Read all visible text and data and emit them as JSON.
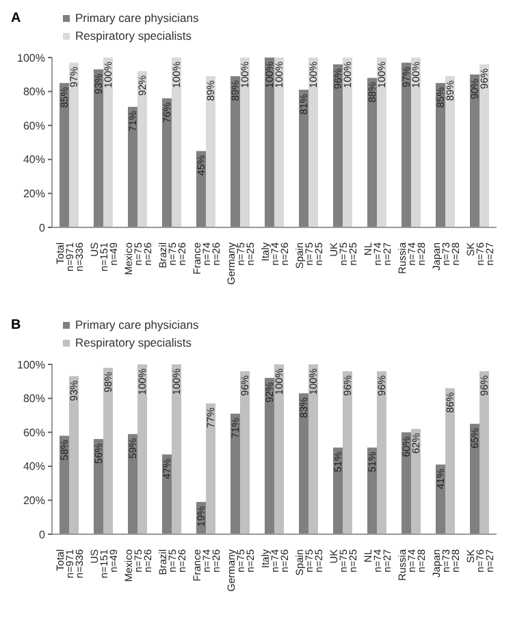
{
  "chart_data": [
    {
      "type": "bar",
      "title": "A",
      "legend": "top left",
      "categories": [
        "Total\nn=971\nn=336",
        "US\nn=151\nn=49",
        "Mexico\nn=75\nn=26",
        "Brazil\nn=75\nn=26",
        "France\nn=74\nn=26",
        "Germany\nn=75\nn=25",
        "Italy\nn=74\nn=26",
        "Spain\nn=75\nn=25",
        "UK\nn=75\nn=25",
        "NL\nn=74\nn=27",
        "Russia\nn=74\nn=28",
        "Japan\nn=73\nn=28",
        "SK\nn=76\nn=27"
      ],
      "series": [
        {
          "name": "Primary care physicians",
          "color": "#808080",
          "values": [
            85,
            93,
            71,
            76,
            45,
            89,
            100,
            81,
            96,
            88,
            97,
            85,
            90
          ],
          "value_labels": [
            "85%",
            "93%",
            "71%",
            "76%",
            "45%",
            "89%",
            "100%",
            "81%",
            "96%",
            "88%",
            "97%",
            "85%",
            "90%"
          ]
        },
        {
          "name": "Respiratory specialists",
          "color": "#d9d9d9",
          "values": [
            97,
            100,
            92,
            100,
            89,
            100,
            100,
            100,
            100,
            100,
            100,
            89,
            96
          ],
          "value_labels": [
            "97%",
            "100%",
            "92%",
            "100%",
            "89%",
            "100%",
            "100%",
            "100%",
            "100%",
            "100%",
            "100%",
            "89%",
            "96%"
          ]
        }
      ],
      "ylim": [
        0,
        100
      ],
      "yticks": [
        {
          "value": 0,
          "label": "0"
        },
        {
          "value": 20,
          "label": "20%"
        },
        {
          "value": 40,
          "label": "40%"
        },
        {
          "value": 60,
          "label": "60%"
        },
        {
          "value": 80,
          "label": "80%"
        },
        {
          "value": 100,
          "label": "100%"
        }
      ]
    },
    {
      "type": "bar",
      "title": "B",
      "legend": "top left",
      "categories": [
        "Total\nn=971\nn=336",
        "US\nn=151\nn=49",
        "Mexico\nn=75\nn=26",
        "Brazil\nn=75\nn=26",
        "France\nn=74\nn=26",
        "Germany\nn=75\nn=25",
        "Italy\nn=74\nn=26",
        "Spain\nn=75\nn=25",
        "UK\nn=75\nn=25",
        "NL\nn=74\nn=27",
        "Russia\nn=74\nn=28",
        "Japan\nn=73\nn=28",
        "SK\nn=76\nn=27"
      ],
      "series": [
        {
          "name": "Primary care physicians",
          "color": "#808080",
          "values": [
            58,
            56,
            59,
            47,
            19,
            71,
            92,
            83,
            51,
            51,
            60,
            41,
            65
          ],
          "value_labels": [
            "58%",
            "56%",
            "59%",
            "47%",
            "19%",
            "71%",
            "92%",
            "83%",
            "51%",
            "51%",
            "60%",
            "41%",
            "65%"
          ]
        },
        {
          "name": "Respiratory specialists",
          "color": "#c0c0c0",
          "values": [
            93,
            98,
            100,
            100,
            77,
            96,
            100,
            100,
            96,
            96,
            62,
            86,
            96
          ],
          "value_labels": [
            "93%",
            "98%",
            "100%",
            "100%",
            "77%",
            "96%",
            "100%",
            "100%",
            "96%",
            "96%",
            "62%",
            "86%",
            "96%"
          ]
        }
      ],
      "ylim": [
        0,
        100
      ],
      "yticks": [
        {
          "value": 0,
          "label": "0"
        },
        {
          "value": 20,
          "label": "20%"
        },
        {
          "value": 40,
          "label": "40%"
        },
        {
          "value": 60,
          "label": "60%"
        },
        {
          "value": 80,
          "label": "80%"
        },
        {
          "value": 100,
          "label": "100%"
        }
      ]
    }
  ]
}
